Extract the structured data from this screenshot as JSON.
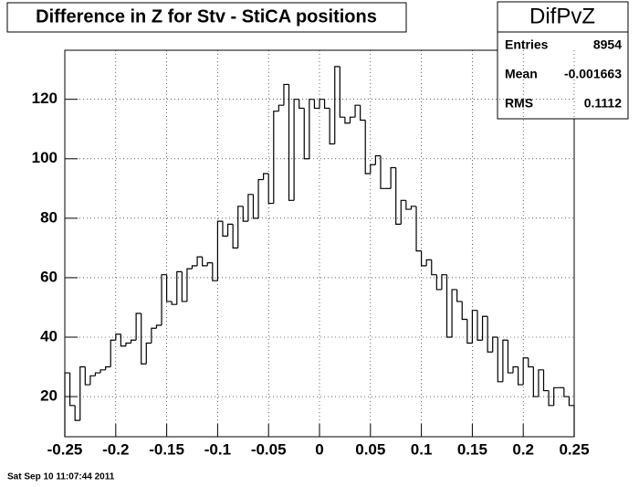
{
  "chart_data": {
    "type": "histogram",
    "title": "Difference in Z for Stv - StiCA positions",
    "bins": [
      -0.25,
      -0.245,
      -0.24,
      -0.235,
      -0.23,
      -0.225,
      -0.22,
      -0.215,
      -0.21,
      -0.205,
      -0.2,
      -0.195,
      -0.19,
      -0.185,
      -0.18,
      -0.175,
      -0.17,
      -0.165,
      -0.16,
      -0.155,
      -0.15,
      -0.145,
      -0.14,
      -0.135,
      -0.13,
      -0.125,
      -0.12,
      -0.115,
      -0.11,
      -0.105,
      -0.1,
      -0.095,
      -0.09,
      -0.085,
      -0.08,
      -0.075,
      -0.07,
      -0.065,
      -0.06,
      -0.055,
      -0.05,
      -0.045,
      -0.04,
      -0.035,
      -0.03,
      -0.025,
      -0.02,
      -0.015,
      -0.01,
      -0.005,
      0,
      0.005,
      0.01,
      0.015,
      0.02,
      0.025,
      0.03,
      0.035,
      0.04,
      0.045,
      0.05,
      0.055,
      0.06,
      0.065,
      0.07,
      0.075,
      0.08,
      0.085,
      0.09,
      0.095,
      0.1,
      0.105,
      0.11,
      0.115,
      0.12,
      0.125,
      0.13,
      0.135,
      0.14,
      0.145,
      0.15,
      0.155,
      0.16,
      0.165,
      0.17,
      0.175,
      0.18,
      0.185,
      0.19,
      0.195,
      0.2,
      0.205,
      0.21,
      0.215,
      0.22,
      0.225,
      0.23,
      0.235,
      0.24,
      0.245,
      0.25
    ],
    "values": [
      28,
      17,
      12,
      30,
      24,
      27,
      28,
      29,
      30,
      39,
      41,
      37,
      38,
      39,
      48,
      31,
      38,
      43,
      44,
      61,
      52,
      51,
      62,
      52,
      63,
      64,
      67,
      64,
      65,
      59,
      79,
      74,
      78,
      70,
      84,
      79,
      88,
      80,
      93,
      95,
      85,
      116,
      118,
      125,
      86,
      120,
      117,
      100,
      120,
      117,
      120,
      117,
      105,
      131,
      114,
      112,
      114,
      118,
      113,
      95,
      98,
      101,
      90,
      90,
      97,
      78,
      86,
      83,
      84,
      69,
      64,
      66,
      61,
      56,
      61,
      40,
      56,
      52,
      46,
      38,
      49,
      39,
      47,
      35,
      40,
      25,
      39,
      28,
      30,
      24,
      33,
      30,
      20,
      29,
      22,
      17,
      23,
      23,
      20,
      17
    ],
    "color": "#000000",
    "xlim": [
      -0.25,
      0.25
    ],
    "ylim": [
      6.5,
      136.5
    ],
    "xticks": [
      -0.25,
      -0.2,
      -0.15,
      -0.1,
      -0.05,
      0,
      0.05,
      0.1,
      0.15,
      0.2,
      0.25
    ],
    "yticks": [
      20,
      40,
      60,
      80,
      100,
      120
    ],
    "grid": true,
    "stats": {
      "title": "DifPvZ",
      "rows": [
        [
          "Entries",
          "8954"
        ],
        [
          "Mean",
          "-0.001663"
        ],
        [
          "RMS",
          "0.1112"
        ]
      ]
    },
    "timestamp": "Sat Sep 10 11:07:44 2011"
  }
}
